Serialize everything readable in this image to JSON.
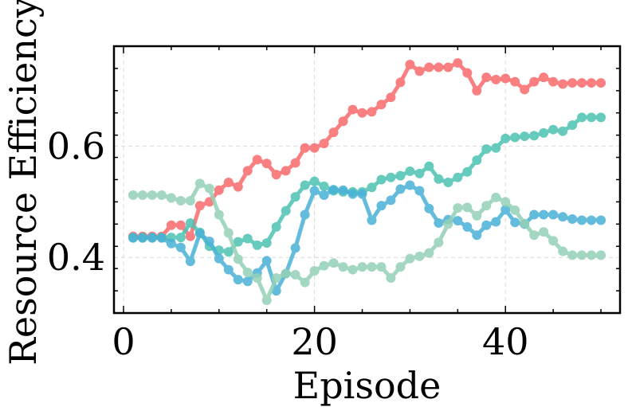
{
  "chart_data": {
    "type": "line",
    "xlabel": "Episode",
    "ylabel": "Resource Efficiency",
    "xlim": [
      -1,
      52
    ],
    "ylim": [
      0.3,
      0.78
    ],
    "xticks": [
      0,
      20,
      40
    ],
    "yticks": [
      0.4,
      0.6
    ],
    "xtick_labels": [
      "0",
      "20",
      "40"
    ],
    "ytick_labels": [
      "0.4",
      "0.6"
    ],
    "grid": true,
    "series": [
      {
        "color": "#f8696b",
        "x": [
          1,
          2,
          3,
          4,
          5,
          6,
          7,
          8,
          9,
          10,
          11,
          12,
          13,
          14,
          15,
          16,
          17,
          18,
          19,
          20,
          21,
          22,
          23,
          24,
          25,
          26,
          27,
          28,
          29,
          30,
          31,
          32,
          33,
          34,
          35,
          36,
          37,
          38,
          39,
          40,
          41,
          42,
          43,
          44,
          45,
          46,
          47,
          48,
          49,
          50
        ],
        "values": [
          0.438,
          0.438,
          0.438,
          0.438,
          0.458,
          0.458,
          0.438,
          0.493,
          0.5,
          0.521,
          0.535,
          0.527,
          0.556,
          0.576,
          0.569,
          0.549,
          0.556,
          0.57,
          0.597,
          0.597,
          0.605,
          0.625,
          0.645,
          0.666,
          0.66,
          0.662,
          0.675,
          0.688,
          0.715,
          0.747,
          0.735,
          0.742,
          0.742,
          0.742,
          0.75,
          0.732,
          0.7,
          0.724,
          0.72,
          0.722,
          0.716,
          0.702,
          0.716,
          0.724,
          0.716,
          0.712,
          0.714,
          0.714,
          0.714,
          0.714
        ]
      },
      {
        "color": "#4cc3b2",
        "x": [
          1,
          2,
          3,
          4,
          5,
          6,
          7,
          8,
          9,
          10,
          11,
          12,
          13,
          14,
          15,
          16,
          17,
          18,
          19,
          20,
          21,
          22,
          23,
          24,
          25,
          26,
          27,
          28,
          29,
          30,
          31,
          32,
          33,
          34,
          35,
          36,
          37,
          38,
          39,
          40,
          41,
          42,
          43,
          44,
          45,
          46,
          47,
          48,
          49,
          50
        ],
        "values": [
          0.436,
          0.436,
          0.436,
          0.436,
          0.436,
          0.436,
          0.462,
          0.445,
          0.42,
          0.413,
          0.41,
          0.428,
          0.434,
          0.422,
          0.426,
          0.455,
          0.484,
          0.509,
          0.53,
          0.537,
          0.528,
          0.52,
          0.518,
          0.518,
          0.518,
          0.526,
          0.54,
          0.544,
          0.547,
          0.555,
          0.551,
          0.564,
          0.541,
          0.535,
          0.544,
          0.554,
          0.575,
          0.595,
          0.597,
          0.614,
          0.616,
          0.618,
          0.619,
          0.624,
          0.63,
          0.627,
          0.638,
          0.652,
          0.652,
          0.652
        ]
      },
      {
        "color": "#4ab1d8",
        "x": [
          1,
          2,
          3,
          4,
          5,
          6,
          7,
          8,
          9,
          10,
          11,
          12,
          13,
          14,
          15,
          16,
          17,
          18,
          19,
          20,
          21,
          22,
          23,
          24,
          25,
          26,
          27,
          28,
          29,
          30,
          31,
          32,
          33,
          34,
          35,
          36,
          37,
          38,
          39,
          40,
          41,
          42,
          43,
          44,
          45,
          46,
          47,
          48,
          49,
          50
        ],
        "values": [
          0.435,
          0.435,
          0.435,
          0.435,
          0.425,
          0.418,
          0.393,
          0.443,
          0.429,
          0.398,
          0.378,
          0.36,
          0.357,
          0.372,
          0.394,
          0.34,
          0.371,
          0.417,
          0.477,
          0.52,
          0.512,
          0.522,
          0.521,
          0.514,
          0.514,
          0.467,
          0.493,
          0.503,
          0.523,
          0.53,
          0.52,
          0.488,
          0.462,
          0.468,
          0.466,
          0.455,
          0.44,
          0.458,
          0.464,
          0.486,
          0.463,
          0.46,
          0.477,
          0.477,
          0.477,
          0.473,
          0.469,
          0.467,
          0.467,
          0.467
        ]
      },
      {
        "color": "#95d1b7",
        "x": [
          1,
          2,
          3,
          4,
          5,
          6,
          7,
          8,
          9,
          10,
          11,
          12,
          13,
          14,
          15,
          16,
          17,
          18,
          19,
          20,
          21,
          22,
          23,
          24,
          25,
          26,
          27,
          28,
          29,
          30,
          31,
          32,
          33,
          34,
          35,
          36,
          37,
          38,
          39,
          40,
          41,
          42,
          43,
          44,
          45,
          46,
          47,
          48,
          49,
          50
        ],
        "values": [
          0.512,
          0.512,
          0.512,
          0.512,
          0.507,
          0.502,
          0.502,
          0.533,
          0.524,
          0.477,
          0.444,
          0.397,
          0.373,
          0.363,
          0.323,
          0.363,
          0.371,
          0.369,
          0.355,
          0.376,
          0.385,
          0.39,
          0.383,
          0.378,
          0.383,
          0.383,
          0.383,
          0.363,
          0.383,
          0.398,
          0.402,
          0.408,
          0.427,
          0.46,
          0.489,
          0.49,
          0.475,
          0.493,
          0.508,
          0.5,
          0.485,
          0.461,
          0.44,
          0.446,
          0.43,
          0.411,
          0.404,
          0.404,
          0.404,
          0.404
        ]
      }
    ]
  }
}
